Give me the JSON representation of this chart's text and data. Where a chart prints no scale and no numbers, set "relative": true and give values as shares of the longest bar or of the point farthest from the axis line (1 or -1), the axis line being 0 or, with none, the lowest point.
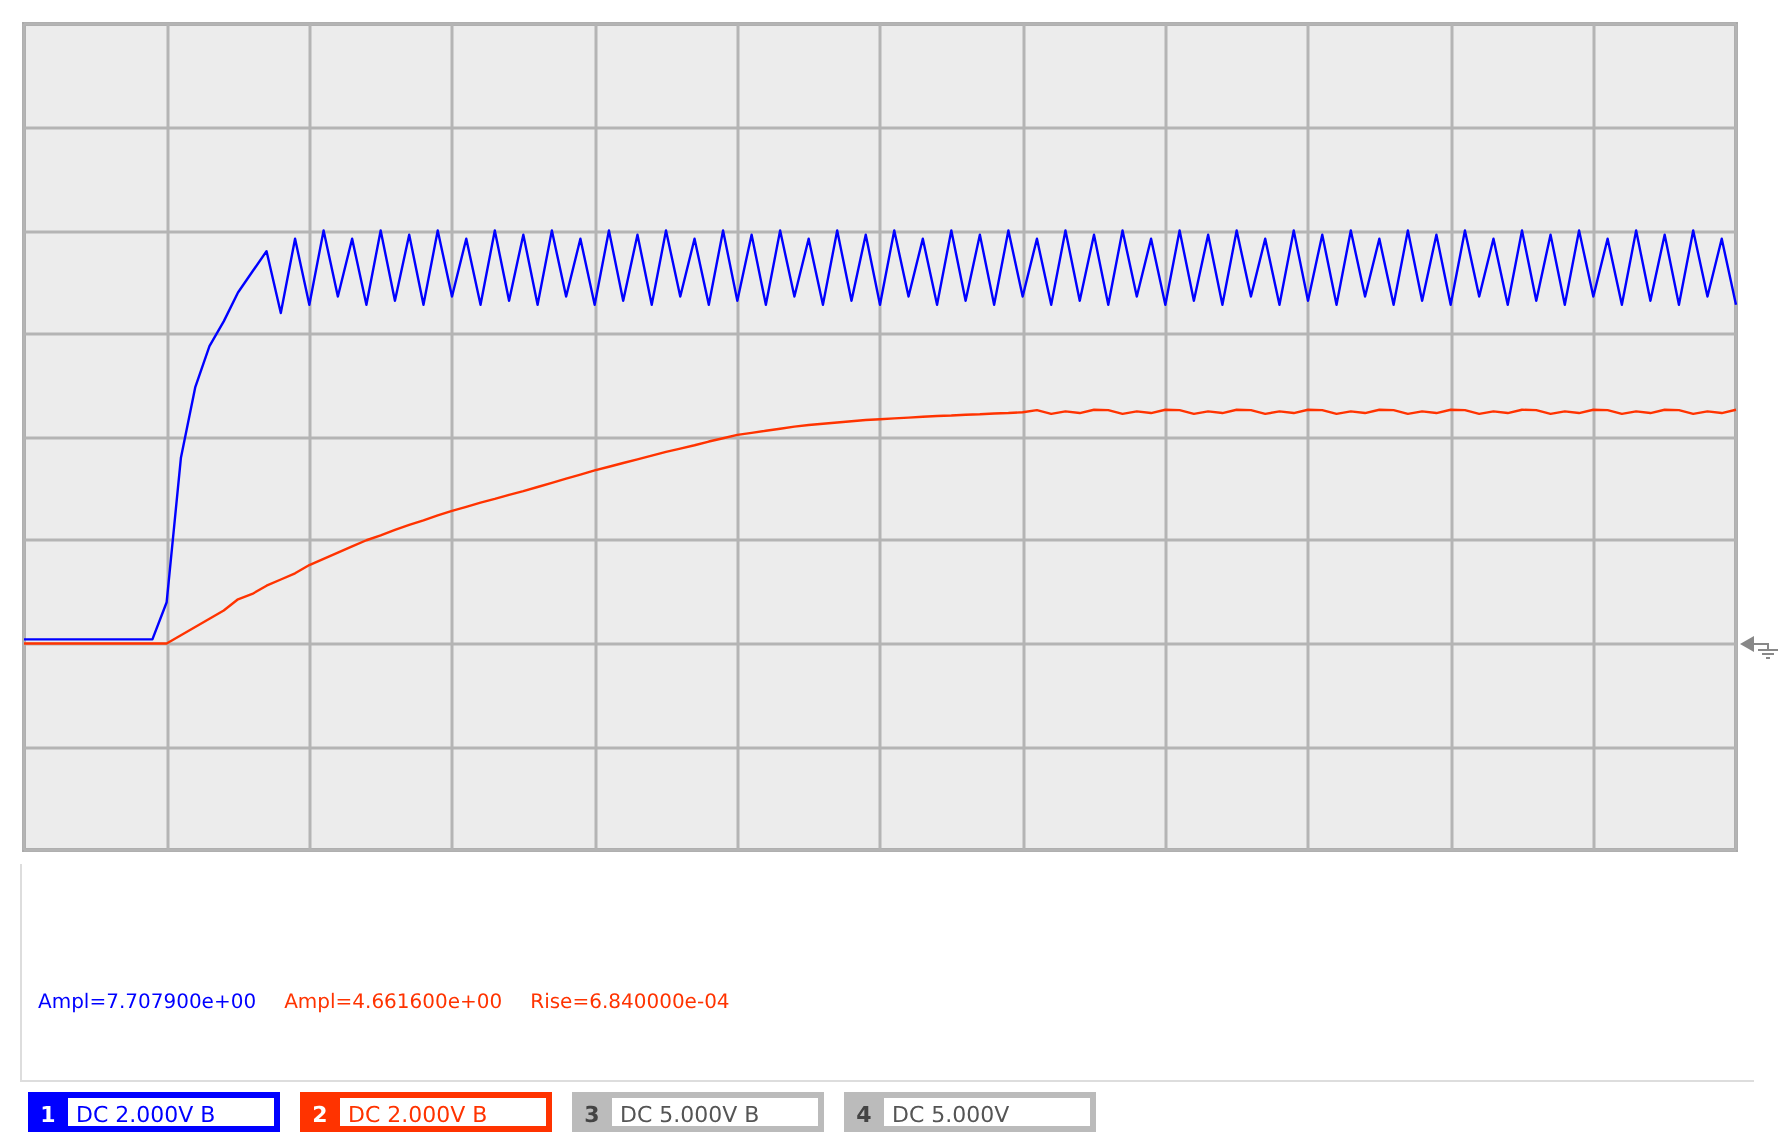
{
  "chart_data": {
    "type": "line",
    "relative": true,
    "grid": true,
    "marker": "none",
    "line_style": "solid",
    "categories": [
      null,
      null,
      null,
      null,
      null,
      null,
      null,
      null,
      null,
      null,
      null,
      null,
      null,
      null,
      null,
      null,
      null,
      null,
      null,
      null,
      null,
      null,
      null,
      null,
      null,
      null,
      null,
      null,
      null,
      null,
      null,
      null,
      null,
      null,
      null,
      null,
      null,
      null,
      null,
      null,
      null,
      null,
      null,
      null,
      null,
      null,
      null,
      null,
      null,
      null,
      null,
      null,
      null,
      null,
      null,
      null,
      null,
      null,
      null,
      null,
      null,
      null,
      null,
      null,
      null,
      null,
      null,
      null,
      null,
      null,
      null,
      null,
      null,
      null,
      null,
      null,
      null,
      null,
      null,
      null,
      null,
      null,
      null,
      null,
      null,
      null,
      null,
      null,
      null,
      null,
      null,
      null,
      null,
      null,
      null,
      null,
      null,
      null,
      null,
      null,
      null,
      null,
      null,
      null,
      null,
      null,
      null,
      null,
      null,
      null,
      null,
      null,
      null,
      null,
      null,
      null,
      null,
      null,
      null,
      null,
      null
    ],
    "series": [
      {
        "color": "#0000ff",
        "values": [
          0.01,
          0.01,
          0.01,
          0.01,
          0.01,
          0.01,
          0.01,
          0.01,
          0.01,
          0.01,
          0.1,
          0.45,
          0.62,
          0.72,
          0.78,
          0.85,
          0.9,
          0.95,
          0.8,
          0.98,
          0.82,
          1,
          0.84,
          0.98,
          0.82,
          1,
          0.83,
          0.99,
          0.82,
          1,
          0.84,
          0.98,
          0.82,
          1,
          0.83,
          0.99,
          0.82,
          1,
          0.84,
          0.98,
          0.82,
          1,
          0.83,
          0.99,
          0.82,
          1,
          0.84,
          0.98,
          0.82,
          1,
          0.83,
          0.99,
          0.82,
          1,
          0.84,
          0.98,
          0.82,
          1,
          0.83,
          0.99,
          0.82,
          1,
          0.84,
          0.98,
          0.82,
          1,
          0.83,
          0.99,
          0.82,
          1,
          0.84,
          0.98,
          0.82,
          1,
          0.83,
          0.99,
          0.82,
          1,
          0.84,
          0.98,
          0.82,
          1,
          0.83,
          0.99,
          0.82,
          1,
          0.84,
          0.98,
          0.82,
          1,
          0.83,
          0.99,
          0.82,
          1,
          0.84,
          0.98,
          0.82,
          1,
          0.83,
          0.99,
          0.82,
          1,
          0.84,
          0.98,
          0.82,
          1,
          0.83,
          0.99,
          0.82,
          1,
          0.84,
          0.98,
          0.82,
          1,
          0.83,
          0.99,
          0.82,
          1,
          0.84,
          0.98,
          0.82
        ]
      },
      {
        "color": "#ff3300",
        "values": [
          0,
          0,
          0,
          0,
          0,
          0,
          0,
          0,
          0,
          0,
          0,
          0.02,
          0.04,
          0.06,
          0.08,
          0.107,
          0.12,
          0.14,
          0.155,
          0.17,
          0.19,
          0.205,
          0.22,
          0.235,
          0.25,
          0.262,
          0.275,
          0.287,
          0.298,
          0.31,
          0.321,
          0.331,
          0.341,
          0.35,
          0.36,
          0.369,
          0.379,
          0.389,
          0.399,
          0.409,
          0.419,
          0.428,
          0.437,
          0.446,
          0.455,
          0.464,
          0.472,
          0.48,
          0.489,
          0.497,
          0.505,
          0.51,
          0.515,
          0.52,
          0.525,
          0.529,
          0.532,
          0.535,
          0.538,
          0.541,
          0.543,
          0.545,
          0.547,
          0.549,
          0.551,
          0.552,
          0.554,
          0.555,
          0.557,
          0.558,
          0.56,
          0.565,
          0.556,
          0.562,
          0.558,
          0.566,
          0.565,
          0.556,
          0.562,
          0.558,
          0.566,
          0.565,
          0.556,
          0.562,
          0.558,
          0.566,
          0.565,
          0.556,
          0.562,
          0.558,
          0.566,
          0.565,
          0.556,
          0.562,
          0.558,
          0.566,
          0.565,
          0.556,
          0.562,
          0.558,
          0.566,
          0.565,
          0.556,
          0.562,
          0.558,
          0.566,
          0.565,
          0.556,
          0.562,
          0.558,
          0.566,
          0.565,
          0.556,
          0.562,
          0.558,
          0.566,
          0.565,
          0.556,
          0.562,
          0.558,
          0.566
        ]
      }
    ],
    "annotations": [
      "Ampl=7.707900e+00",
      "Ampl=4.661600e+00",
      "Rise=6.840000e-04",
      "1",
      "DC 2.000V B",
      "2",
      "DC 2.000V B",
      "3",
      "DC 5.000V B",
      "4",
      "DC 5.000V"
    ]
  }
}
